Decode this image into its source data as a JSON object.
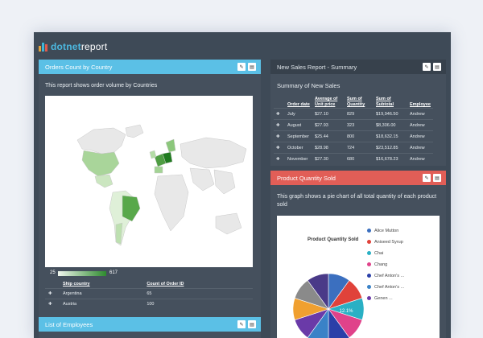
{
  "brand": {
    "bold": "dotnet",
    "light": "report"
  },
  "panels": {
    "orders": {
      "title": "Orders Count by Country",
      "description": "This report shows order volume by Countries",
      "legend_min": "25",
      "legend_max": "617",
      "columns": [
        "Ship country",
        "Count of Order ID"
      ],
      "rows": [
        [
          "Argentina",
          "65"
        ],
        [
          "Austria",
          "100"
        ]
      ]
    },
    "sales": {
      "title": "New Sales Report - Summary",
      "subtitle": "Summary of New Sales",
      "columns": [
        "Order date",
        "Average of Unit price",
        "Sum of Quantity",
        "Sum of Subtotal",
        "Employee"
      ],
      "rows": [
        [
          "July",
          "$27.10",
          "829",
          "$19,946.50",
          "Andrew"
        ],
        [
          "August",
          "$27.93",
          "323",
          "$8,306.00",
          "Andrew"
        ],
        [
          "September",
          "$25.44",
          "800",
          "$18,632.15",
          "Andrew"
        ],
        [
          "October",
          "$28.98",
          "724",
          "$23,512.85",
          "Andrew"
        ],
        [
          "November",
          "$27.30",
          "680",
          "$16,678.23",
          "Andrew"
        ]
      ]
    },
    "product": {
      "title": "Product Quantity Sold",
      "description": "This graph shows a pie chart of all total quantity of each product sold",
      "chart_title": "Product Quantity Sold",
      "slice_label": "12.1%",
      "legend": [
        {
          "label": "Alice Mutton",
          "color": "#3b6fbf"
        },
        {
          "label": "Aniseed Syrup",
          "color": "#e0423a"
        },
        {
          "label": "Chai",
          "color": "#2ab0c4"
        },
        {
          "label": "Chang",
          "color": "#e0428a"
        },
        {
          "label": "Chef Anton's ...",
          "color": "#2a3fa8"
        },
        {
          "label": "Chef Anton's ...",
          "color": "#3a82c7"
        },
        {
          "label": "Genen ...",
          "color": "#6a3aa8"
        }
      ]
    },
    "employees": {
      "title": "List of Employees"
    }
  },
  "colors": {
    "accent_blue": "#5bc0e6",
    "accent_red": "#e15e57",
    "frame": "#3e4a57"
  }
}
